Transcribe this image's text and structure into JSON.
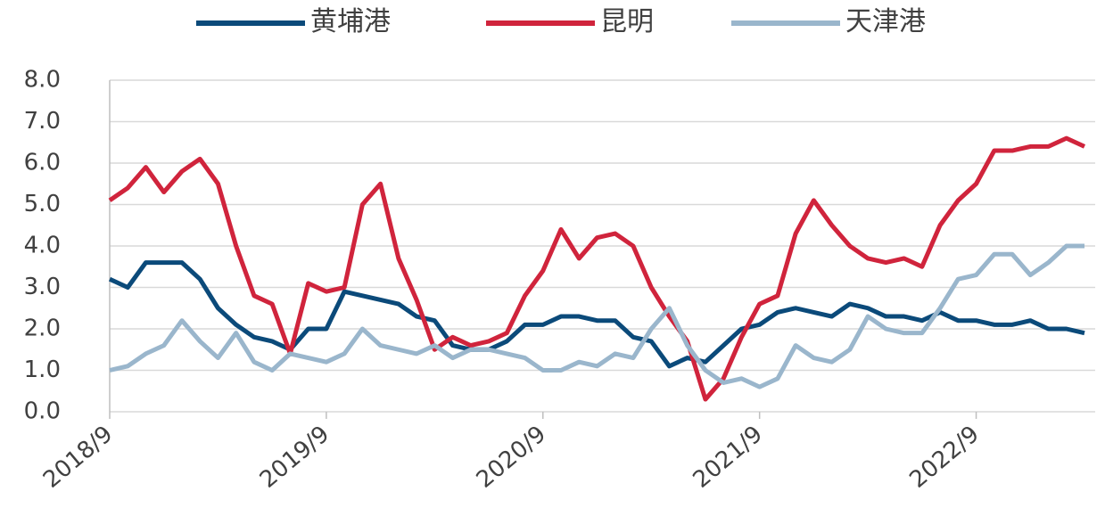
{
  "chart_data": {
    "type": "line",
    "categories": [
      "2018/9",
      null,
      null,
      null,
      null,
      null,
      null,
      null,
      null,
      null,
      null,
      null,
      "2019/9",
      null,
      null,
      null,
      null,
      null,
      null,
      null,
      null,
      null,
      null,
      null,
      "2020/9",
      null,
      null,
      null,
      null,
      null,
      null,
      null,
      null,
      null,
      null,
      null,
      "2021/9",
      null,
      null,
      null,
      null,
      null,
      null,
      null,
      null,
      null,
      null,
      null,
      "2022/9",
      null,
      null,
      null,
      null,
      null,
      null
    ],
    "series": [
      {
        "name": "黄埔港",
        "color": "#0b4a7a",
        "values": [
          3.2,
          3.0,
          3.6,
          3.6,
          3.6,
          3.2,
          2.5,
          2.1,
          1.8,
          1.7,
          1.5,
          2.0,
          2.0,
          2.9,
          2.8,
          2.7,
          2.6,
          2.3,
          2.2,
          1.6,
          1.5,
          1.5,
          1.7,
          2.1,
          2.1,
          2.3,
          2.3,
          2.2,
          2.2,
          1.8,
          1.7,
          1.1,
          1.3,
          1.2,
          1.6,
          2.0,
          2.1,
          2.4,
          2.5,
          2.4,
          2.3,
          2.6,
          2.5,
          2.3,
          2.3,
          2.2,
          2.4,
          2.2,
          2.2,
          2.1,
          2.1,
          2.2,
          2.0,
          2.0,
          1.9
        ]
      },
      {
        "name": "昆明",
        "color": "#d0243c",
        "values": [
          5.1,
          5.4,
          5.9,
          5.3,
          5.8,
          6.1,
          5.5,
          4.0,
          2.8,
          2.6,
          1.4,
          3.1,
          2.9,
          3.0,
          5.0,
          5.5,
          3.7,
          2.7,
          1.5,
          1.8,
          1.6,
          1.7,
          1.9,
          2.8,
          3.4,
          4.4,
          3.7,
          4.2,
          4.3,
          4.0,
          3.0,
          2.3,
          1.7,
          0.3,
          0.8,
          1.8,
          2.6,
          2.8,
          4.3,
          5.1,
          4.5,
          4.0,
          3.7,
          3.6,
          3.7,
          3.5,
          4.5,
          5.1,
          5.5,
          6.3,
          6.3,
          6.4,
          6.4,
          6.6,
          6.4
        ]
      },
      {
        "name": "天津港",
        "color": "#9ab6cc",
        "values": [
          1.0,
          1.1,
          1.4,
          1.6,
          2.2,
          1.7,
          1.3,
          1.9,
          1.2,
          1.0,
          1.4,
          1.3,
          1.2,
          1.4,
          2.0,
          1.6,
          1.5,
          1.4,
          1.6,
          1.3,
          1.5,
          1.5,
          1.4,
          1.3,
          1.0,
          1.0,
          1.2,
          1.1,
          1.4,
          1.3,
          2.0,
          2.5,
          1.6,
          1.0,
          0.7,
          0.8,
          0.6,
          0.8,
          1.6,
          1.3,
          1.2,
          1.5,
          2.3,
          2.0,
          1.9,
          1.9,
          2.5,
          3.2,
          3.3,
          3.8,
          3.8,
          3.3,
          3.6,
          4.0,
          4.0
        ]
      }
    ],
    "ylim": [
      0,
      8
    ],
    "yticks": [
      {
        "value": 0,
        "label": "0.0"
      },
      {
        "value": 1,
        "label": "1.0"
      },
      {
        "value": 2,
        "label": "2.0"
      },
      {
        "value": 3,
        "label": "3.0"
      },
      {
        "value": 4,
        "label": "4.0"
      },
      {
        "value": 5,
        "label": "5.0"
      },
      {
        "value": 6,
        "label": "6.0"
      },
      {
        "value": 7,
        "label": "7.0"
      },
      {
        "value": 8,
        "label": "8.0"
      }
    ],
    "grid": true,
    "legend": "top"
  }
}
